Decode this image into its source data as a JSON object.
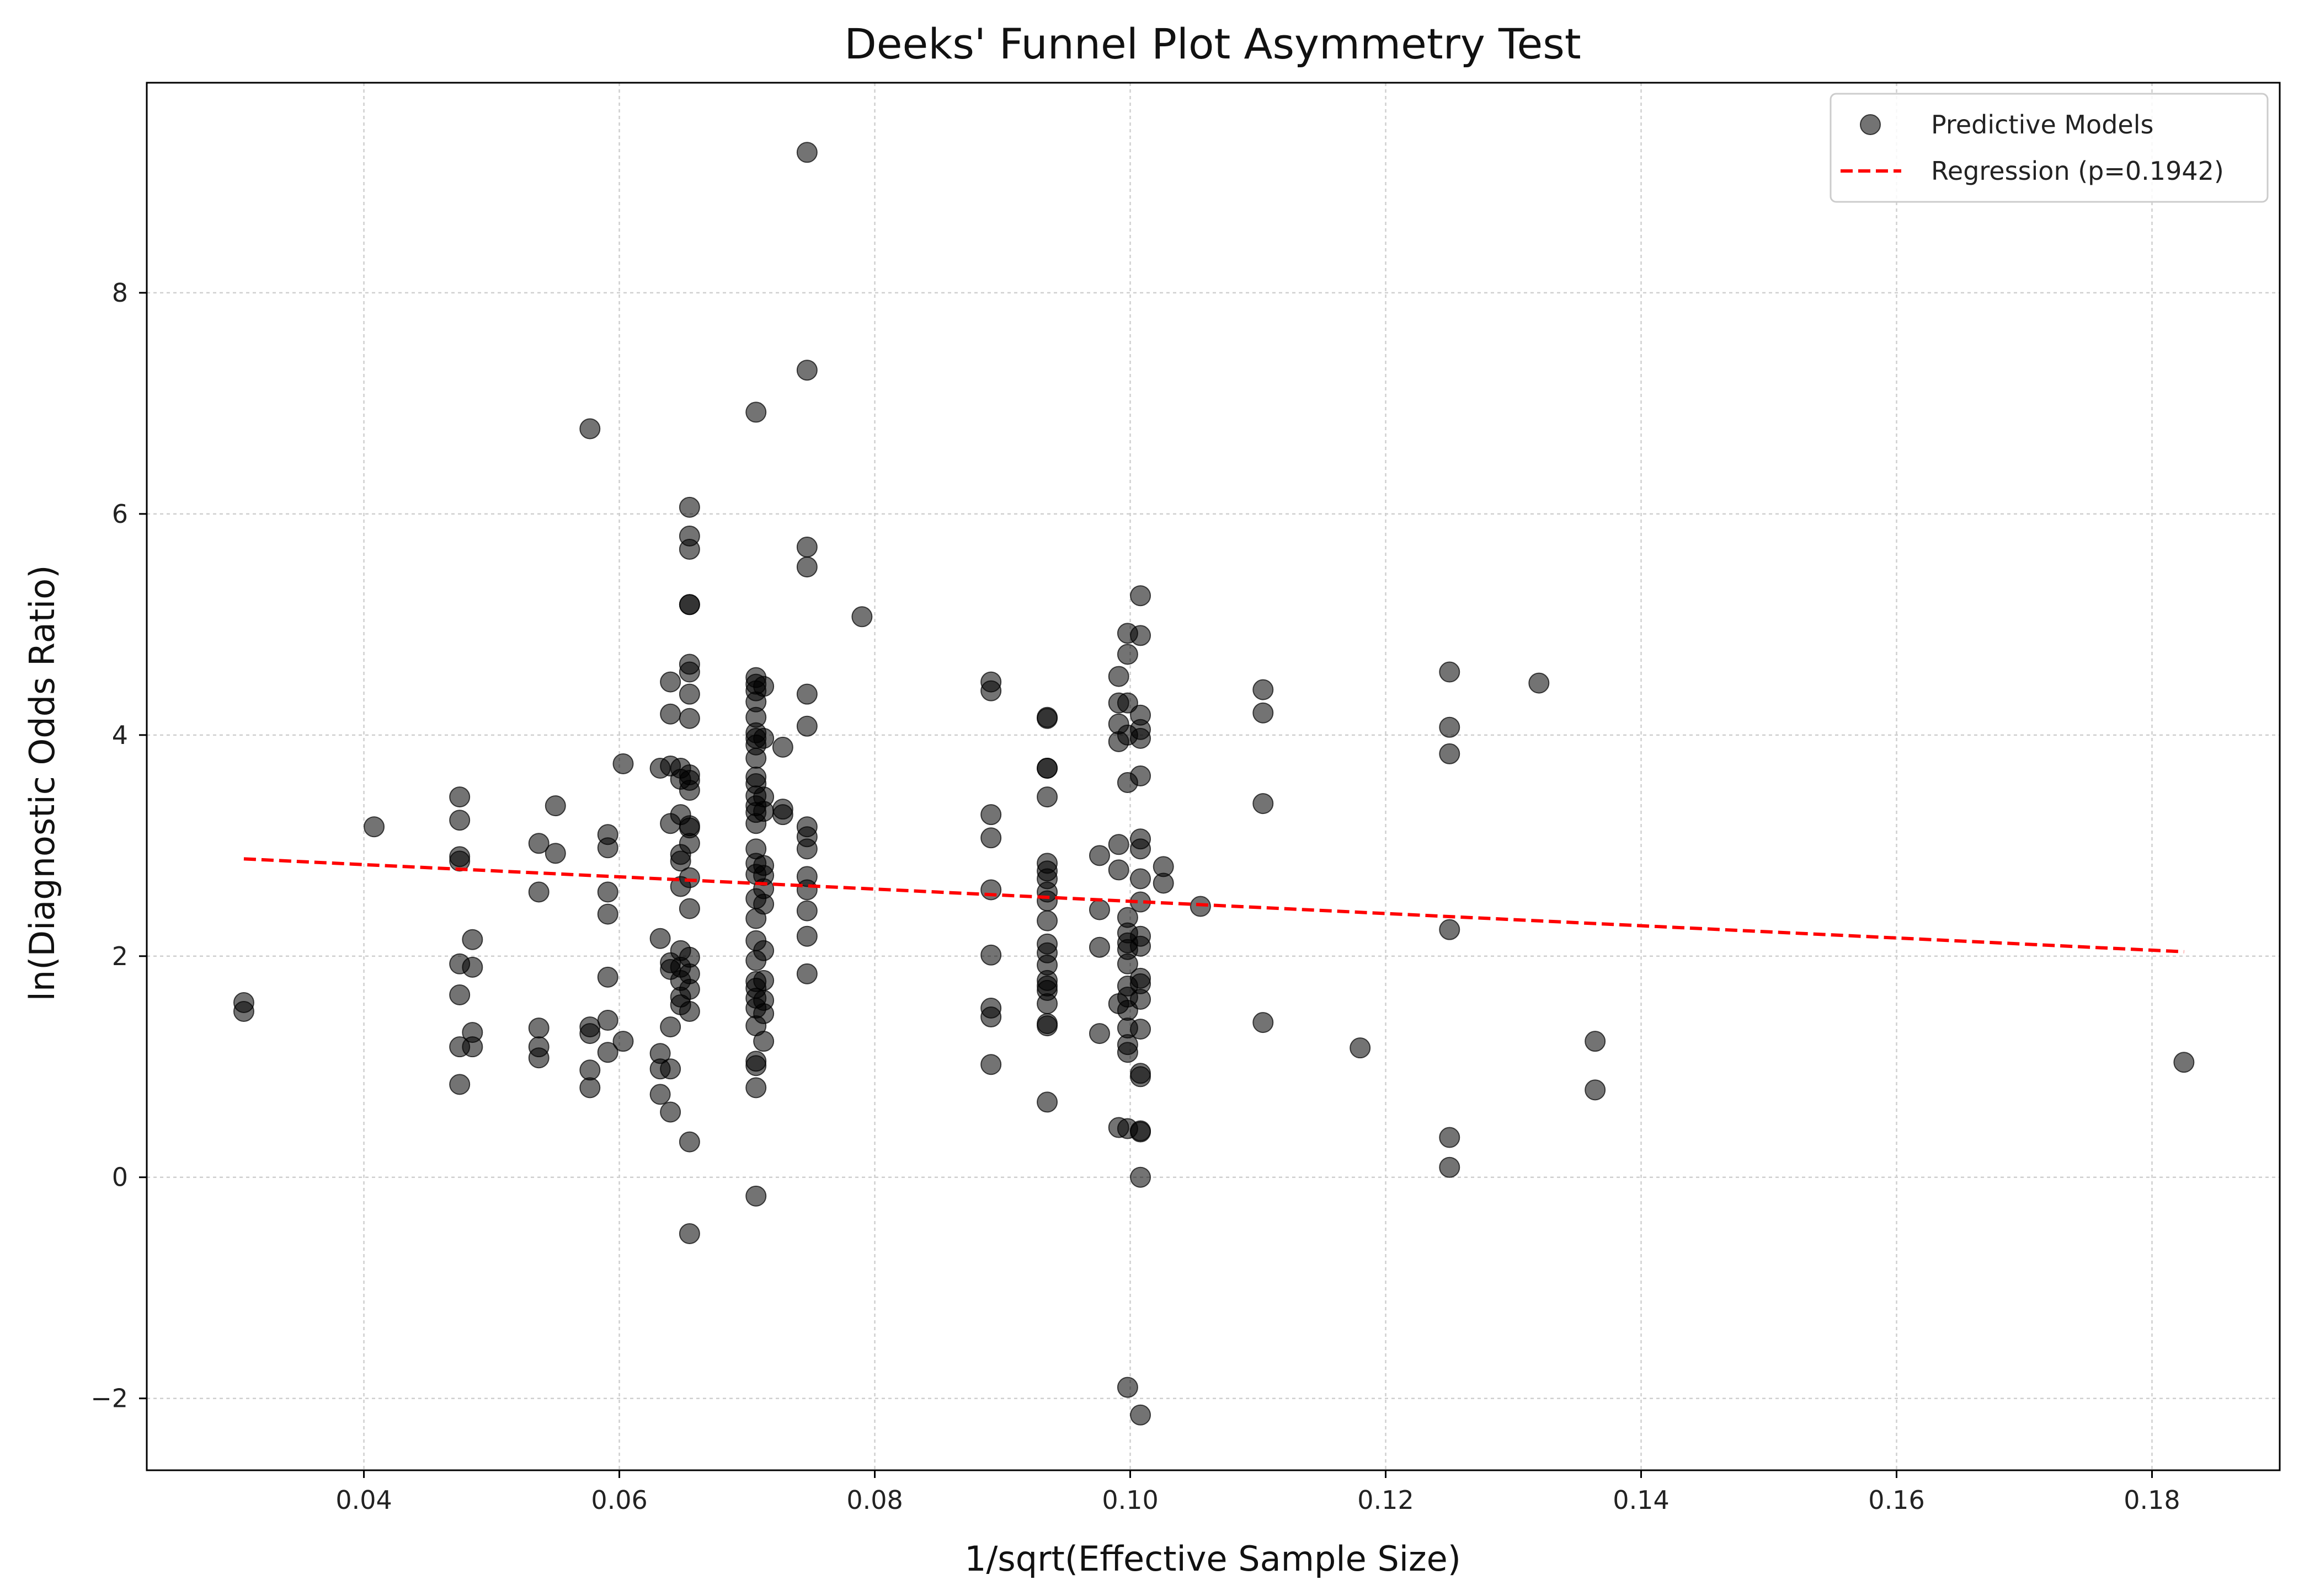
{
  "chart_data": {
    "type": "scatter",
    "title": "Deeks' Funnel Plot Asymmetry Test",
    "xlabel": "1/sqrt(Effective Sample Size)",
    "ylabel": "ln(Diagnostic Odds Ratio)",
    "xlim": [
      0.023,
      0.19
    ],
    "ylim": [
      -2.65,
      9.9
    ],
    "x_ticks": [
      0.04,
      0.06,
      0.08,
      0.1,
      0.12,
      0.14,
      0.16,
      0.18
    ],
    "x_tick_labels": [
      "0.04",
      "0.06",
      "0.08",
      "0.10",
      "0.12",
      "0.14",
      "0.16",
      "0.18"
    ],
    "y_ticks": [
      -2,
      0,
      2,
      4,
      6,
      8
    ],
    "y_tick_labels": [
      "−2",
      "0",
      "2",
      "4",
      "6",
      "8"
    ],
    "grid": true,
    "legend_position": "top-right",
    "colors": {
      "points": "#000000",
      "points_opacity": 0.55,
      "regression": "#ff0000"
    },
    "series": [
      {
        "name": "Predictive Models",
        "type": "scatter",
        "points": [
          [
            0.0306,
            1.58
          ],
          [
            0.0306,
            1.5
          ],
          [
            0.0408,
            3.17
          ],
          [
            0.0475,
            3.44
          ],
          [
            0.0475,
            3.23
          ],
          [
            0.0475,
            2.9
          ],
          [
            0.0475,
            2.86
          ],
          [
            0.0475,
            1.93
          ],
          [
            0.0475,
            1.65
          ],
          [
            0.0475,
            1.18
          ],
          [
            0.0475,
            0.84
          ],
          [
            0.0485,
            2.15
          ],
          [
            0.0485,
            1.9
          ],
          [
            0.0485,
            1.31
          ],
          [
            0.0485,
            1.18
          ],
          [
            0.0537,
            3.02
          ],
          [
            0.0537,
            2.58
          ],
          [
            0.0537,
            1.35
          ],
          [
            0.0537,
            1.18
          ],
          [
            0.0537,
            1.08
          ],
          [
            0.055,
            3.36
          ],
          [
            0.055,
            2.93
          ],
          [
            0.0577,
            6.77
          ],
          [
            0.0577,
            1.36
          ],
          [
            0.0577,
            1.3
          ],
          [
            0.0577,
            0.97
          ],
          [
            0.0577,
            0.81
          ],
          [
            0.0591,
            3.1
          ],
          [
            0.0591,
            2.98
          ],
          [
            0.0591,
            2.58
          ],
          [
            0.0591,
            2.38
          ],
          [
            0.0591,
            1.81
          ],
          [
            0.0591,
            1.42
          ],
          [
            0.0591,
            1.13
          ],
          [
            0.0603,
            3.74
          ],
          [
            0.0603,
            1.23
          ],
          [
            0.0632,
            3.7
          ],
          [
            0.0632,
            2.16
          ],
          [
            0.0632,
            1.12
          ],
          [
            0.0632,
            0.98
          ],
          [
            0.0632,
            0.75
          ],
          [
            0.064,
            4.48
          ],
          [
            0.064,
            4.19
          ],
          [
            0.064,
            3.72
          ],
          [
            0.064,
            3.2
          ],
          [
            0.064,
            1.94
          ],
          [
            0.064,
            1.88
          ],
          [
            0.064,
            1.36
          ],
          [
            0.064,
            0.98
          ],
          [
            0.064,
            0.59
          ],
          [
            0.0648,
            3.7
          ],
          [
            0.0648,
            3.6
          ],
          [
            0.0648,
            3.28
          ],
          [
            0.0648,
            2.92
          ],
          [
            0.0648,
            2.86
          ],
          [
            0.0648,
            2.63
          ],
          [
            0.0648,
            2.05
          ],
          [
            0.0648,
            1.9
          ],
          [
            0.0648,
            1.78
          ],
          [
            0.0648,
            1.63
          ],
          [
            0.0648,
            1.56
          ],
          [
            0.0655,
            6.06
          ],
          [
            0.0655,
            5.8
          ],
          [
            0.0655,
            5.68
          ],
          [
            0.0655,
            5.18
          ],
          [
            0.0655,
            5.18
          ],
          [
            0.0655,
            4.64
          ],
          [
            0.0655,
            4.57
          ],
          [
            0.0655,
            4.37
          ],
          [
            0.0655,
            4.15
          ],
          [
            0.0655,
            3.64
          ],
          [
            0.0655,
            3.59
          ],
          [
            0.0655,
            3.5
          ],
          [
            0.0655,
            3.18
          ],
          [
            0.0655,
            3.16
          ],
          [
            0.0655,
            3.02
          ],
          [
            0.0655,
            2.71
          ],
          [
            0.0655,
            2.43
          ],
          [
            0.0655,
            1.99
          ],
          [
            0.0655,
            1.84
          ],
          [
            0.0655,
            1.7
          ],
          [
            0.0655,
            1.5
          ],
          [
            0.0655,
            0.32
          ],
          [
            0.0655,
            -0.51
          ],
          [
            0.0707,
            6.92
          ],
          [
            0.0707,
            4.52
          ],
          [
            0.0707,
            4.46
          ],
          [
            0.0707,
            4.4
          ],
          [
            0.0707,
            4.3
          ],
          [
            0.0707,
            4.16
          ],
          [
            0.0707,
            4.02
          ],
          [
            0.0707,
            3.97
          ],
          [
            0.0707,
            3.91
          ],
          [
            0.0707,
            3.79
          ],
          [
            0.0707,
            3.62
          ],
          [
            0.0707,
            3.56
          ],
          [
            0.0707,
            3.45
          ],
          [
            0.0707,
            3.36
          ],
          [
            0.0707,
            3.3
          ],
          [
            0.0707,
            3.2
          ],
          [
            0.0707,
            2.97
          ],
          [
            0.0707,
            2.84
          ],
          [
            0.0707,
            2.74
          ],
          [
            0.0707,
            2.52
          ],
          [
            0.0707,
            2.34
          ],
          [
            0.0707,
            2.14
          ],
          [
            0.0707,
            1.96
          ],
          [
            0.0707,
            1.77
          ],
          [
            0.0707,
            1.71
          ],
          [
            0.0707,
            1.62
          ],
          [
            0.0707,
            1.53
          ],
          [
            0.0707,
            1.37
          ],
          [
            0.0707,
            1.05
          ],
          [
            0.0707,
            1.01
          ],
          [
            0.0707,
            0.81
          ],
          [
            0.0707,
            -0.17
          ],
          [
            0.0713,
            4.44
          ],
          [
            0.0713,
            3.97
          ],
          [
            0.0713,
            3.44
          ],
          [
            0.0713,
            3.31
          ],
          [
            0.0713,
            2.82
          ],
          [
            0.0713,
            2.73
          ],
          [
            0.0713,
            2.61
          ],
          [
            0.0713,
            2.47
          ],
          [
            0.0713,
            2.05
          ],
          [
            0.0713,
            1.78
          ],
          [
            0.0713,
            1.6
          ],
          [
            0.0713,
            1.48
          ],
          [
            0.0713,
            1.23
          ],
          [
            0.0728,
            3.89
          ],
          [
            0.0728,
            3.33
          ],
          [
            0.0728,
            3.28
          ],
          [
            0.0747,
            9.27
          ],
          [
            0.0747,
            7.3
          ],
          [
            0.0747,
            5.7
          ],
          [
            0.0747,
            5.52
          ],
          [
            0.0747,
            4.37
          ],
          [
            0.0747,
            4.08
          ],
          [
            0.0747,
            3.17
          ],
          [
            0.0747,
            3.08
          ],
          [
            0.0747,
            2.97
          ],
          [
            0.0747,
            2.72
          ],
          [
            0.0747,
            2.6
          ],
          [
            0.0747,
            2.41
          ],
          [
            0.0747,
            2.18
          ],
          [
            0.0747,
            1.84
          ],
          [
            0.079,
            5.07
          ],
          [
            0.0891,
            4.48
          ],
          [
            0.0891,
            4.4
          ],
          [
            0.0891,
            3.28
          ],
          [
            0.0891,
            3.07
          ],
          [
            0.0891,
            2.6
          ],
          [
            0.0891,
            2.01
          ],
          [
            0.0891,
            1.53
          ],
          [
            0.0891,
            1.45
          ],
          [
            0.0891,
            1.02
          ],
          [
            0.0935,
            4.16
          ],
          [
            0.0935,
            4.15
          ],
          [
            0.0935,
            3.7
          ],
          [
            0.0935,
            3.7
          ],
          [
            0.0935,
            3.44
          ],
          [
            0.0935,
            2.84
          ],
          [
            0.0935,
            2.77
          ],
          [
            0.0935,
            2.7
          ],
          [
            0.0935,
            2.58
          ],
          [
            0.0935,
            2.5
          ],
          [
            0.0935,
            2.32
          ],
          [
            0.0935,
            2.11
          ],
          [
            0.0935,
            2.03
          ],
          [
            0.0935,
            1.92
          ],
          [
            0.0935,
            1.78
          ],
          [
            0.0935,
            1.73
          ],
          [
            0.0935,
            1.69
          ],
          [
            0.0935,
            1.57
          ],
          [
            0.0935,
            1.39
          ],
          [
            0.0935,
            1.37
          ],
          [
            0.0935,
            0.68
          ],
          [
            0.0976,
            2.91
          ],
          [
            0.0976,
            2.42
          ],
          [
            0.0976,
            2.08
          ],
          [
            0.0976,
            1.3
          ],
          [
            0.0991,
            4.53
          ],
          [
            0.0991,
            4.29
          ],
          [
            0.0991,
            4.1
          ],
          [
            0.0991,
            3.94
          ],
          [
            0.0991,
            3.01
          ],
          [
            0.0991,
            2.78
          ],
          [
            0.0991,
            1.57
          ],
          [
            0.0991,
            0.45
          ],
          [
            0.0998,
            4.92
          ],
          [
            0.0998,
            4.73
          ],
          [
            0.0998,
            4.29
          ],
          [
            0.0998,
            4.0
          ],
          [
            0.0998,
            3.57
          ],
          [
            0.0998,
            2.35
          ],
          [
            0.0998,
            2.21
          ],
          [
            0.0998,
            2.12
          ],
          [
            0.0998,
            2.06
          ],
          [
            0.0998,
            1.93
          ],
          [
            0.0998,
            1.73
          ],
          [
            0.0998,
            1.63
          ],
          [
            0.0998,
            1.51
          ],
          [
            0.0998,
            1.35
          ],
          [
            0.0998,
            1.2
          ],
          [
            0.0998,
            1.13
          ],
          [
            0.0998,
            0.44
          ],
          [
            0.0998,
            -1.9
          ],
          [
            0.1008,
            5.26
          ],
          [
            0.1008,
            4.9
          ],
          [
            0.1008,
            4.18
          ],
          [
            0.1008,
            4.05
          ],
          [
            0.1008,
            3.97
          ],
          [
            0.1008,
            3.63
          ],
          [
            0.1008,
            3.06
          ],
          [
            0.1008,
            2.97
          ],
          [
            0.1008,
            2.7
          ],
          [
            0.1008,
            2.49
          ],
          [
            0.1008,
            2.18
          ],
          [
            0.1008,
            2.09
          ],
          [
            0.1008,
            1.8
          ],
          [
            0.1008,
            1.75
          ],
          [
            0.1008,
            1.61
          ],
          [
            0.1008,
            1.34
          ],
          [
            0.1008,
            0.94
          ],
          [
            0.1008,
            0.91
          ],
          [
            0.1008,
            0.42
          ],
          [
            0.1008,
            0.41
          ],
          [
            0.1008,
            0.0
          ],
          [
            0.1008,
            -2.15
          ],
          [
            0.1026,
            2.81
          ],
          [
            0.1026,
            2.66
          ],
          [
            0.1055,
            2.45
          ],
          [
            0.1104,
            4.41
          ],
          [
            0.1104,
            4.2
          ],
          [
            0.1104,
            3.38
          ],
          [
            0.1104,
            1.4
          ],
          [
            0.118,
            1.17
          ],
          [
            0.125,
            4.57
          ],
          [
            0.125,
            4.07
          ],
          [
            0.125,
            3.83
          ],
          [
            0.125,
            2.24
          ],
          [
            0.125,
            0.36
          ],
          [
            0.125,
            0.09
          ],
          [
            0.132,
            4.47
          ],
          [
            0.1364,
            1.23
          ],
          [
            0.1364,
            0.79
          ],
          [
            0.1825,
            1.04
          ]
        ]
      },
      {
        "name": "Regression (p=0.1942)",
        "type": "line",
        "style": "dashed",
        "x": [
          0.0306,
          0.1825
        ],
        "y": [
          2.88,
          2.04
        ]
      }
    ]
  }
}
